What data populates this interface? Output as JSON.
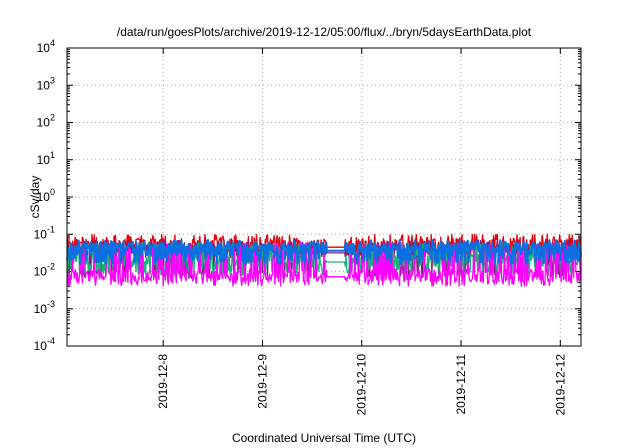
{
  "chart_data": {
    "type": "line",
    "title": "/data/run/goesPlots/archive/2019-12-12/05:00/flux/../bryn/5daysEarthData.plot",
    "xlabel": "Coordinated Universal Time (UTC)",
    "ylabel": "cSv/day",
    "y_scale": "log",
    "ylim": [
      0.0001,
      10000
    ],
    "y_ticks": [
      {
        "value": 0.0001,
        "base": "10",
        "exp": "-4"
      },
      {
        "value": 0.001,
        "base": "10",
        "exp": "-3"
      },
      {
        "value": 0.01,
        "base": "10",
        "exp": "-2"
      },
      {
        "value": 0.1,
        "base": "10",
        "exp": "-1"
      },
      {
        "value": 1,
        "base": "10",
        "exp": "0"
      },
      {
        "value": 10,
        "base": "10",
        "exp": "1"
      },
      {
        "value": 100,
        "base": "10",
        "exp": "2"
      },
      {
        "value": 1000,
        "base": "10",
        "exp": "3"
      },
      {
        "value": 10000,
        "base": "10",
        "exp": "4"
      }
    ],
    "xlim": [
      "2019-12-07T00:45",
      "2019-12-12T05:00"
    ],
    "x_ticks": [
      "2019-12-8",
      "2019-12-9",
      "2019-12-10",
      "2019-12-11",
      "2019-12-12"
    ],
    "x_tick_values": [
      "2019-12-08T00:00",
      "2019-12-09T00:00",
      "2019-12-10T00:00",
      "2019-12-11T00:00",
      "2019-12-12T00:00"
    ],
    "grid": true,
    "legend": "none",
    "data_gaps": [
      [
        "2019-12-09T15:30",
        "2019-12-09T20:00"
      ]
    ],
    "series": [
      {
        "color": "#e8000b",
        "baseline": 0.05,
        "spike_high": 0.1,
        "low": 0.03
      },
      {
        "color": "#7a1f7a",
        "baseline": 0.035,
        "spike_high": 0.07,
        "low": 0.008
      },
      {
        "color": "#1ab27a",
        "baseline": 0.02,
        "spike_high": 0.06,
        "low": 0.01
      },
      {
        "color": "#ff00ff",
        "baseline": 0.008,
        "spike_high": 0.06,
        "low": 0.005
      },
      {
        "color": "#0a6fe0",
        "baseline": 0.04,
        "spike_high": 0.07,
        "low": 0.02
      }
    ]
  }
}
